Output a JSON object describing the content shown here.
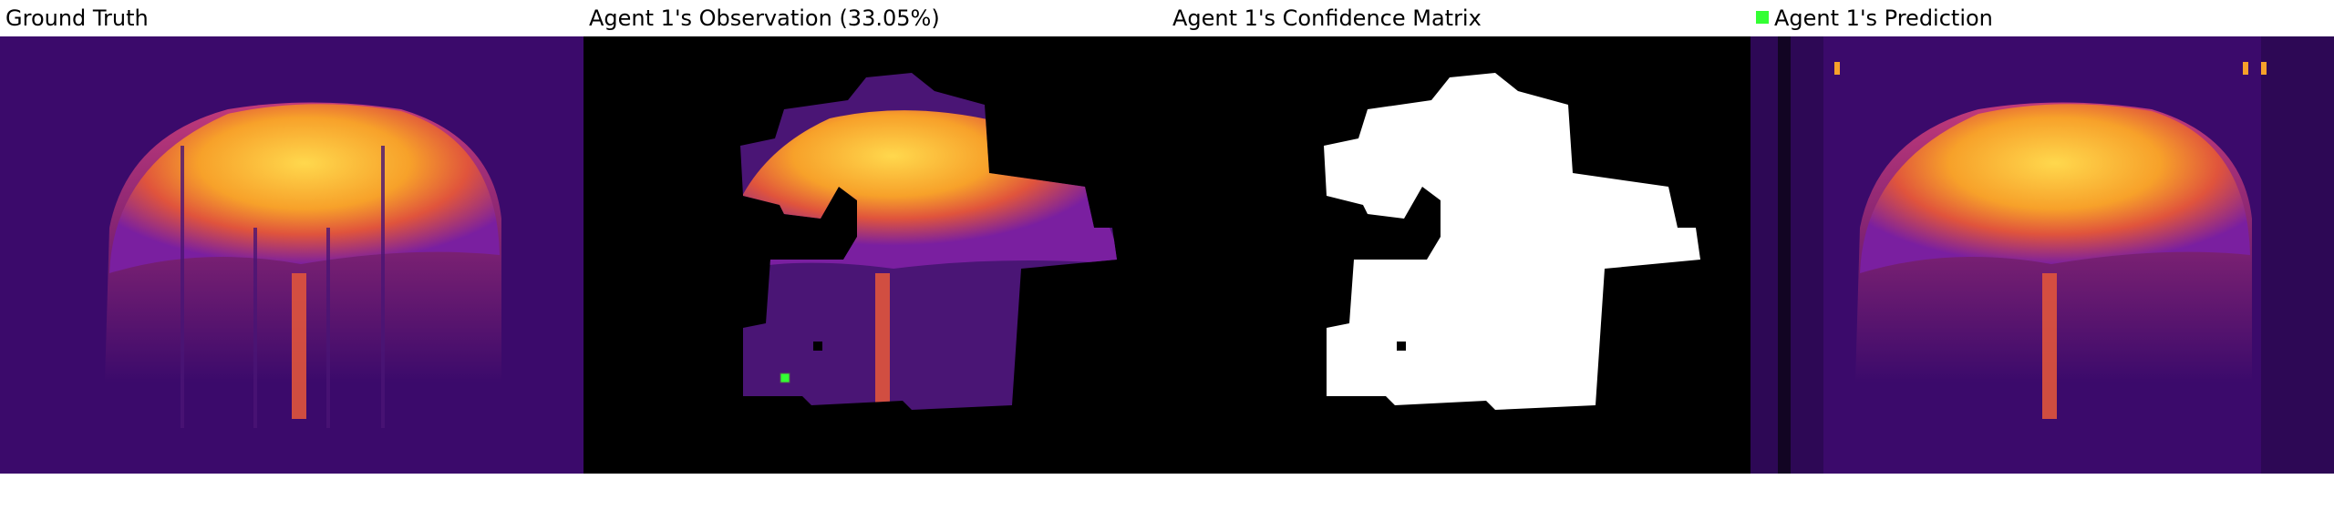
{
  "panels": [
    {
      "title": "Ground Truth"
    },
    {
      "title": "Agent 1's Observation (33.05%)"
    },
    {
      "title": "Agent 1's Confidence Matrix"
    },
    {
      "title": "Agent 1's Prediction",
      "legend_color": "#33ff33"
    }
  ],
  "colors": {
    "background": "#ffffff",
    "heat_dark": "#3b0a6b",
    "heat_mid": "#7a1fa0",
    "heat_warm": "#e0543c",
    "heat_hot": "#f7a12a",
    "heat_peak": "#ffd84d",
    "mask_black": "#000000",
    "mask_white": "#ffffff",
    "agent_marker": "#33ff33"
  }
}
